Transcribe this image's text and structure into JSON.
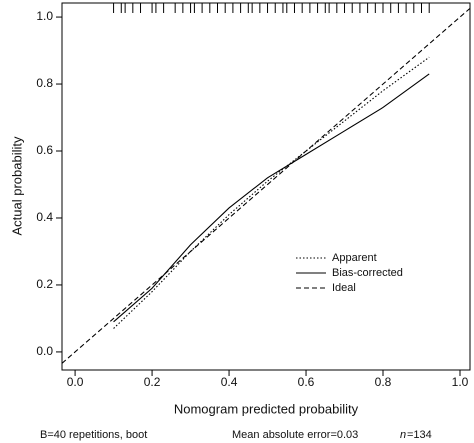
{
  "chart_data": {
    "type": "line",
    "xlabel": "Nomogram predicted probability",
    "ylabel": "Actual probability",
    "xlim": [
      -0.034,
      1.026
    ],
    "ylim": [
      -0.054,
      1.042
    ],
    "xticks": [
      {
        "value": 0,
        "label": "0.0"
      },
      0.2,
      0.4,
      0.6,
      0.8,
      {
        "value": 1,
        "label": "1.0"
      }
    ],
    "yticks": [
      {
        "value": 0,
        "label": "0.0"
      },
      0.2,
      0.4,
      0.6,
      0.8,
      {
        "value": 1,
        "label": "1.0"
      }
    ],
    "series": [
      {
        "name": "Apparent",
        "color": "#000000",
        "dash": "1.5,2",
        "x": [
          0.1,
          0.2,
          0.3,
          0.4,
          0.5,
          0.6,
          0.7,
          0.8,
          0.92
        ],
        "values": [
          0.07,
          0.18,
          0.3,
          0.41,
          0.51,
          0.6,
          0.69,
          0.78,
          0.88
        ]
      },
      {
        "name": "Bias-corrected",
        "color": "#000000",
        "dash": "none",
        "x": [
          0.1,
          0.2,
          0.3,
          0.4,
          0.5,
          0.6,
          0.7,
          0.8,
          0.92
        ],
        "values": [
          0.09,
          0.19,
          0.32,
          0.43,
          0.52,
          0.59,
          0.66,
          0.73,
          0.83
        ]
      },
      {
        "name": "Ideal",
        "color": "#000000",
        "dash": "5,3",
        "x": [
          -0.034,
          1.026
        ],
        "values": [
          -0.034,
          1.026
        ]
      }
    ],
    "rug": [
      0.1,
      0.12,
      0.13,
      0.15,
      0.17,
      0.2,
      0.21,
      0.23,
      0.26,
      0.28,
      0.3,
      0.31,
      0.33,
      0.35,
      0.37,
      0.39,
      0.41,
      0.43,
      0.45,
      0.46,
      0.48,
      0.5,
      0.52,
      0.54,
      0.55,
      0.57,
      0.59,
      0.61,
      0.63,
      0.65,
      0.66,
      0.68,
      0.7,
      0.72,
      0.74,
      0.76,
      0.78,
      0.8,
      0.82,
      0.84,
      0.86,
      0.88,
      0.9,
      0.92
    ],
    "footnotes": [
      "B=40 repetitions, boot",
      "Mean absolute error=0.03",
      "n",
      "=134"
    ]
  }
}
